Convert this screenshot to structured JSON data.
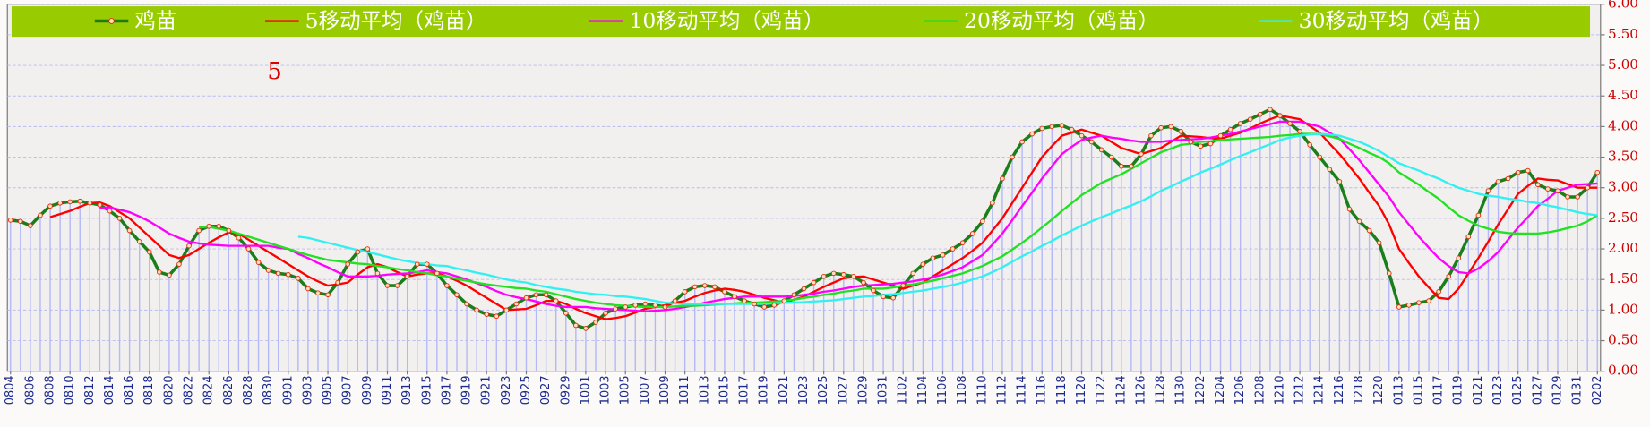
{
  "chart_data": {
    "type": "line",
    "annotation": "5",
    "legend": "top",
    "grid": true,
    "ylim": [
      0,
      6
    ],
    "yticks": [
      {
        "value": 0,
        "label": "0.00"
      },
      {
        "value": 0.5,
        "label": "0.50"
      },
      {
        "value": 1,
        "label": "1.00"
      },
      {
        "value": 1.5,
        "label": "1.50"
      },
      {
        "value": 2,
        "label": "2.00"
      },
      {
        "value": 2.5,
        "label": "2.50"
      },
      {
        "value": 3,
        "label": "3.00"
      },
      {
        "value": 3.5,
        "label": "3.50"
      },
      {
        "value": 4,
        "label": "4.00"
      },
      {
        "value": 4.5,
        "label": "4.50"
      },
      {
        "value": 5,
        "label": "5.00"
      },
      {
        "value": 5.5,
        "label": "5.50"
      },
      {
        "value": 6,
        "label": "6.00"
      }
    ],
    "categories": [
      "0804",
      null,
      "0806",
      null,
      "0808",
      null,
      "0810",
      null,
      "0812",
      null,
      "0814",
      null,
      "0816",
      null,
      "0818",
      null,
      "0820",
      null,
      "0822",
      null,
      "0824",
      null,
      "0826",
      null,
      "0828",
      null,
      "0830",
      null,
      "0901",
      null,
      "0903",
      null,
      "0905",
      null,
      "0907",
      null,
      "0909",
      null,
      "0911",
      null,
      "0913",
      null,
      "0915",
      null,
      "0917",
      null,
      "0919",
      null,
      "0921",
      null,
      "0923",
      null,
      "0925",
      null,
      "0927",
      null,
      "0929",
      null,
      "1001",
      null,
      "1003",
      null,
      "1005",
      null,
      "1007",
      null,
      "1009",
      null,
      "1011",
      null,
      "1013",
      null,
      "1015",
      null,
      "1017",
      null,
      "1019",
      null,
      "1021",
      null,
      "1023",
      null,
      "1025",
      null,
      "1027",
      null,
      "1029",
      null,
      "1031",
      null,
      "1102",
      null,
      "1104",
      null,
      "1106",
      null,
      "1108",
      null,
      "1110",
      null,
      "1112",
      null,
      "1114",
      null,
      "1116",
      null,
      "1118",
      null,
      "1120",
      null,
      "1122",
      null,
      "1124",
      null,
      "1126",
      null,
      "1128",
      null,
      "1130",
      null,
      "1202",
      null,
      "1204",
      null,
      "1206",
      null,
      "1208",
      null,
      "1210",
      null,
      "1212",
      null,
      "1214",
      null,
      "1216",
      null,
      "1218",
      null,
      "1220",
      null,
      "0113",
      null,
      "0115",
      null,
      "0117",
      null,
      "0119",
      null,
      "0121",
      null,
      "0123",
      null,
      "0125",
      null,
      "0127",
      null,
      "0129",
      null,
      "0131",
      null,
      "0202"
    ],
    "series": [
      {
        "name": "鸡苗",
        "color": "#1a7f1a",
        "markers": true,
        "drop_lines": true,
        "values": [
          2.47,
          2.45,
          2.38,
          2.55,
          2.7,
          2.75,
          2.77,
          2.78,
          2.75,
          2.72,
          2.62,
          2.5,
          2.3,
          2.12,
          1.95,
          1.62,
          1.57,
          1.75,
          2.05,
          2.3,
          2.37,
          2.37,
          2.3,
          2.18,
          2,
          1.78,
          1.65,
          1.6,
          1.58,
          1.52,
          1.35,
          1.28,
          1.25,
          1.45,
          1.75,
          1.95,
          2,
          1.6,
          1.4,
          1.4,
          1.55,
          1.75,
          1.75,
          1.6,
          1.4,
          1.25,
          1.1,
          1,
          0.93,
          0.9,
          1,
          1.1,
          1.2,
          1.25,
          1.25,
          1.15,
          0.95,
          0.75,
          0.7,
          0.8,
          0.95,
          1.02,
          1.05,
          1.08,
          1.1,
          1.08,
          1.05,
          1.15,
          1.3,
          1.38,
          1.4,
          1.38,
          1.3,
          1.22,
          1.15,
          1.1,
          1.05,
          1.08,
          1.15,
          1.25,
          1.35,
          1.45,
          1.55,
          1.6,
          1.58,
          1.55,
          1.45,
          1.32,
          1.22,
          1.2,
          1.4,
          1.6,
          1.75,
          1.85,
          1.9,
          2,
          2.1,
          2.25,
          2.45,
          2.75,
          3.15,
          3.5,
          3.75,
          3.88,
          3.97,
          4,
          4.02,
          3.95,
          3.85,
          3.75,
          3.62,
          3.5,
          3.35,
          3.35,
          3.55,
          3.85,
          3.98,
          4,
          3.92,
          3.75,
          3.68,
          3.72,
          3.85,
          3.95,
          4.05,
          4.12,
          4.2,
          4.28,
          4.18,
          4.05,
          3.92,
          3.7,
          3.5,
          3.3,
          3.1,
          2.65,
          2.45,
          2.3,
          2.1,
          1.6,
          1.05,
          1.08,
          1.12,
          1.15,
          1.3,
          1.55,
          1.85,
          2.2,
          2.55,
          2.95,
          3.1,
          3.15,
          3.25,
          3.28,
          3.05,
          2.98,
          2.95,
          2.85,
          2.85,
          3,
          3.25
        ]
      },
      {
        "name": "5移动平均（鸡苗）",
        "color": "#ff0000",
        "values": [
          null,
          null,
          null,
          null,
          2.52,
          2.57,
          2.62,
          2.69,
          2.75,
          2.76,
          2.7,
          2.6,
          2.5,
          2.35,
          2.2,
          2.05,
          1.9,
          1.85,
          1.9,
          2,
          2.1,
          2.19,
          2.27,
          2.25,
          2.15,
          2.05,
          1.95,
          1.85,
          1.75,
          1.65,
          1.55,
          1.47,
          1.4,
          1.42,
          1.45,
          1.58,
          1.7,
          1.75,
          1.7,
          1.62,
          1.55,
          1.58,
          1.6,
          1.6,
          1.55,
          1.48,
          1.4,
          1.3,
          1.2,
          1.1,
          1,
          1.01,
          1.02,
          1.08,
          1.15,
          1.15,
          1.1,
          1.02,
          0.95,
          0.9,
          0.85,
          0.87,
          0.9,
          0.96,
          1.02,
          1.05,
          1.08,
          1.12,
          1.15,
          1.22,
          1.28,
          1.32,
          1.35,
          1.33,
          1.3,
          1.25,
          1.2,
          1.16,
          1.12,
          1.17,
          1.22,
          1.3,
          1.38,
          1.45,
          1.52,
          1.54,
          1.55,
          1.5,
          1.45,
          1.4,
          1.35,
          1.4,
          1.45,
          1.55,
          1.65,
          1.75,
          1.85,
          1.97,
          2.1,
          2.3,
          2.5,
          2.75,
          3,
          3.25,
          3.5,
          3.68,
          3.85,
          3.9,
          3.95,
          3.9,
          3.85,
          3.75,
          3.65,
          3.6,
          3.55,
          3.6,
          3.65,
          3.75,
          3.85,
          3.84,
          3.83,
          3.81,
          3.8,
          3.85,
          3.9,
          3.97,
          4.05,
          4.12,
          4.18,
          4.15,
          4.12,
          4.01,
          3.9,
          3.72,
          3.55,
          3.35,
          3.15,
          2.92,
          2.7,
          2.4,
          2,
          1.77,
          1.55,
          1.37,
          1.2,
          1.18,
          1.35,
          1.6,
          1.85,
          2.12,
          2.4,
          2.65,
          2.9,
          3.03,
          3.15,
          3.13,
          3.12,
          3.06,
          3,
          3,
          3
        ]
      },
      {
        "name": "10移动平均（鸡苗）",
        "color": "#ff00ff",
        "values": [
          null,
          null,
          null,
          null,
          null,
          null,
          null,
          null,
          null,
          2.67,
          2.68,
          2.64,
          2.6,
          2.53,
          2.45,
          2.35,
          2.25,
          2.18,
          2.12,
          2.09,
          2.07,
          2.06,
          2.05,
          2.05,
          2.05,
          2.05,
          2.05,
          2.02,
          2,
          1.92,
          1.85,
          1.77,
          1.7,
          1.62,
          1.55,
          1.55,
          1.55,
          1.56,
          1.58,
          1.59,
          1.6,
          1.62,
          1.65,
          1.62,
          1.6,
          1.55,
          1.5,
          1.44,
          1.38,
          1.31,
          1.25,
          1.21,
          1.18,
          1.14,
          1.1,
          1.07,
          1.05,
          1.05,
          1.05,
          1.03,
          1.02,
          1.01,
          1,
          0.99,
          0.98,
          0.99,
          1,
          1.02,
          1.05,
          1.08,
          1.12,
          1.15,
          1.18,
          1.2,
          1.22,
          1.22,
          1.22,
          1.22,
          1.22,
          1.23,
          1.25,
          1.27,
          1.3,
          1.32,
          1.35,
          1.38,
          1.4,
          1.41,
          1.42,
          1.43,
          1.45,
          1.47,
          1.5,
          1.54,
          1.58,
          1.64,
          1.7,
          1.8,
          1.9,
          2.07,
          2.25,
          2.47,
          2.7,
          2.92,
          3.15,
          3.35,
          3.55,
          3.67,
          3.78,
          3.82,
          3.85,
          3.82,
          3.8,
          3.77,
          3.75,
          3.75,
          3.75,
          3.77,
          3.78,
          3.79,
          3.8,
          3.82,
          3.85,
          3.88,
          3.92,
          3.96,
          4,
          4.04,
          4.08,
          4.08,
          4.08,
          4.04,
          4,
          3.9,
          3.8,
          3.63,
          3.45,
          3.25,
          3.05,
          2.85,
          2.6,
          2.4,
          2.2,
          2.02,
          1.85,
          1.72,
          1.62,
          1.6,
          1.68,
          1.8,
          1.95,
          2.15,
          2.35,
          2.52,
          2.7,
          2.82,
          2.95,
          3,
          3.05,
          3.06,
          3.07
        ]
      },
      {
        "name": "20移动平均（鸡苗）",
        "color": "#22e022",
        "values": [
          null,
          null,
          null,
          null,
          null,
          null,
          null,
          null,
          null,
          null,
          null,
          null,
          null,
          null,
          null,
          null,
          null,
          null,
          null,
          2.35,
          2.36,
          2.33,
          2.3,
          2.25,
          2.2,
          2.15,
          2.1,
          2.05,
          2,
          1.95,
          1.9,
          1.86,
          1.82,
          1.8,
          1.78,
          1.76,
          1.75,
          1.72,
          1.7,
          1.67,
          1.65,
          1.62,
          1.6,
          1.57,
          1.55,
          1.51,
          1.48,
          1.45,
          1.42,
          1.4,
          1.38,
          1.36,
          1.35,
          1.32,
          1.3,
          1.26,
          1.22,
          1.18,
          1.15,
          1.12,
          1.1,
          1.08,
          1.07,
          1.06,
          1.05,
          1.05,
          1.05,
          1.06,
          1.07,
          1.07,
          1.08,
          1.09,
          1.1,
          1.11,
          1.12,
          1.12,
          1.13,
          1.14,
          1.15,
          1.17,
          1.2,
          1.22,
          1.25,
          1.27,
          1.3,
          1.32,
          1.35,
          1.35,
          1.35,
          1.37,
          1.4,
          1.42,
          1.45,
          1.48,
          1.52,
          1.56,
          1.6,
          1.66,
          1.72,
          1.8,
          1.88,
          1.99,
          2.1,
          2.22,
          2.35,
          2.48,
          2.62,
          2.75,
          2.88,
          2.98,
          3.08,
          3.15,
          3.22,
          3.31,
          3.4,
          3.49,
          3.58,
          3.64,
          3.7,
          3.72,
          3.75,
          3.76,
          3.78,
          3.79,
          3.8,
          3.81,
          3.82,
          3.83,
          3.85,
          3.86,
          3.88,
          3.88,
          3.88,
          3.84,
          3.8,
          3.72,
          3.65,
          3.57,
          3.5,
          3.4,
          3.25,
          3.15,
          3.05,
          2.93,
          2.82,
          2.68,
          2.55,
          2.46,
          2.38,
          2.33,
          2.28,
          2.26,
          2.25,
          2.25,
          2.25,
          2.27,
          2.3,
          2.34,
          2.38,
          2.45,
          2.55
        ]
      },
      {
        "name": "30移动平均（鸡苗）",
        "color": "#33f0f0",
        "values": [
          null,
          null,
          null,
          null,
          null,
          null,
          null,
          null,
          null,
          null,
          null,
          null,
          null,
          null,
          null,
          null,
          null,
          null,
          null,
          null,
          null,
          null,
          null,
          null,
          null,
          null,
          null,
          null,
          null,
          2.2,
          2.18,
          2.14,
          2.1,
          2.06,
          2.02,
          1.98,
          1.95,
          1.91,
          1.87,
          1.83,
          1.8,
          1.77,
          1.75,
          1.73,
          1.72,
          1.68,
          1.65,
          1.61,
          1.58,
          1.54,
          1.5,
          1.47,
          1.45,
          1.41,
          1.38,
          1.35,
          1.33,
          1.3,
          1.28,
          1.26,
          1.25,
          1.23,
          1.22,
          1.2,
          1.18,
          1.15,
          1.12,
          1.11,
          1.1,
          1.1,
          1.1,
          1.1,
          1.1,
          1.1,
          1.1,
          1.1,
          1.1,
          1.11,
          1.12,
          1.12,
          1.13,
          1.14,
          1.15,
          1.16,
          1.18,
          1.2,
          1.22,
          1.23,
          1.25,
          1.26,
          1.28,
          1.3,
          1.32,
          1.35,
          1.38,
          1.41,
          1.45,
          1.5,
          1.55,
          1.62,
          1.7,
          1.79,
          1.88,
          1.96,
          2.05,
          2.13,
          2.22,
          2.3,
          2.38,
          2.45,
          2.52,
          2.58,
          2.65,
          2.71,
          2.78,
          2.86,
          2.95,
          3.02,
          3.1,
          3.17,
          3.25,
          3.31,
          3.38,
          3.45,
          3.52,
          3.58,
          3.65,
          3.71,
          3.78,
          3.82,
          3.85,
          3.87,
          3.88,
          3.87,
          3.85,
          3.8,
          3.75,
          3.68,
          3.6,
          3.5,
          3.4,
          3.34,
          3.28,
          3.21,
          3.15,
          3.07,
          3,
          2.95,
          2.9,
          2.87,
          2.85,
          2.82,
          2.8,
          2.77,
          2.75,
          2.71,
          2.68,
          2.64,
          2.6,
          2.57,
          2.55
        ]
      }
    ]
  }
}
